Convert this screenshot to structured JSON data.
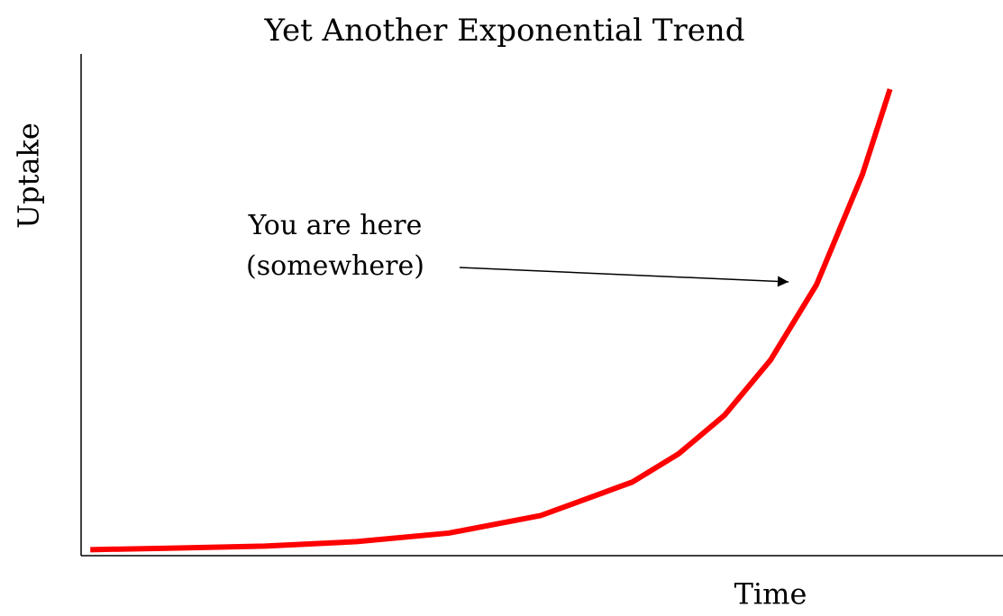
{
  "chart_data": {
    "type": "line",
    "title": "Yet Another Exponential Trend",
    "x_label": "Time",
    "y_label": "Uptake",
    "annotation": [
      "You are here",
      "(somewhere)"
    ],
    "x": [
      1,
      10,
      20,
      30,
      40,
      50,
      60,
      65,
      70,
      75,
      80,
      85,
      88
    ],
    "series": [
      {
        "name": "Uptake",
        "color": "#ff0000",
        "values": [
          1.2,
          1.5,
          1.9,
          2.8,
          4.5,
          8,
          14.7,
          20.3,
          28,
          39,
          54,
          76,
          93
        ]
      }
    ],
    "xlim": [
      0,
      100
    ],
    "ylim": [
      0,
      100
    ],
    "grid": false
  }
}
